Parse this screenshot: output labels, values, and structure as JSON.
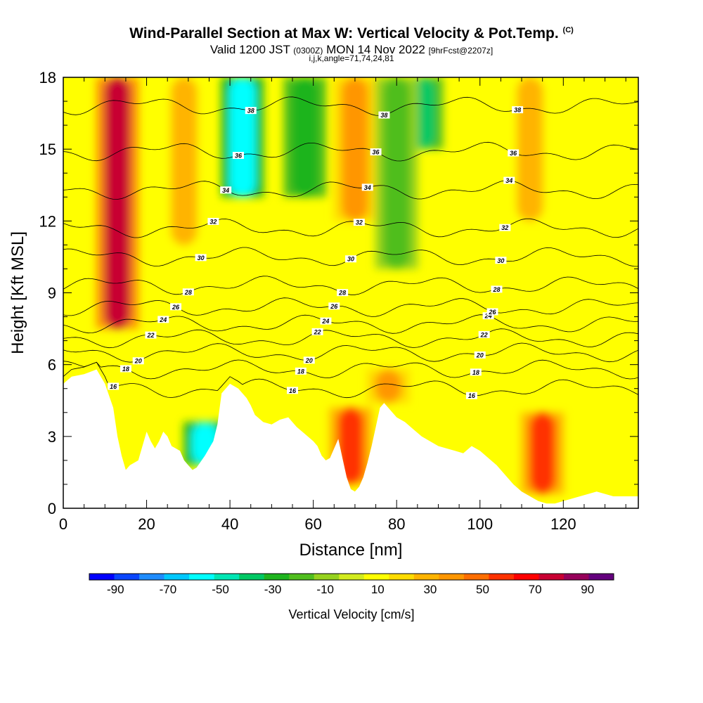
{
  "title": {
    "main": "Wind-Parallel Section at Max W: Vertical Velocity & Pot.Temp.",
    "copyright": "(C)",
    "valid_prefix": "Valid 1200 JST",
    "valid_utc": "(0300Z)",
    "valid_date": "MON 14 Nov 2022",
    "forecast": "[9hrFcst@2207z]",
    "grid_info": "i,j,k,angle=71,74,24,81"
  },
  "chart_data": {
    "type": "heatmap",
    "xlabel": "Distance [nm]",
    "ylabel": "Height [Kft MSL]",
    "xlim": [
      0,
      138
    ],
    "ylim": [
      0,
      18
    ],
    "x_ticks": [
      "0",
      "20",
      "40",
      "60",
      "80",
      "100",
      "120"
    ],
    "x_tick_values": [
      0,
      20,
      40,
      60,
      80,
      100,
      120
    ],
    "y_ticks": [
      "0",
      "3",
      "6",
      "9",
      "12",
      "15",
      "18"
    ],
    "y_tick_values": [
      0,
      3,
      6,
      9,
      12,
      15,
      18
    ],
    "terrain": {
      "x": [
        0,
        2,
        5,
        8,
        10,
        12,
        13,
        14,
        15,
        16,
        18,
        19,
        20,
        21,
        22,
        23,
        24,
        25,
        26,
        28,
        29,
        30,
        31,
        32,
        34,
        36,
        37,
        38,
        40,
        42,
        44,
        45,
        46,
        48,
        50,
        52,
        54,
        56,
        58,
        60,
        61,
        62,
        63,
        64,
        65,
        66,
        67,
        68,
        69,
        70,
        71,
        72,
        73,
        74,
        75,
        76,
        77,
        78,
        80,
        82,
        84,
        86,
        88,
        90,
        92,
        94,
        96,
        98,
        100,
        102,
        104,
        106,
        108,
        110,
        112,
        114,
        116,
        118,
        120,
        122,
        124,
        126,
        128,
        130,
        132,
        134,
        136,
        138
      ],
      "height_kft": [
        5.2,
        5.5,
        5.6,
        5.8,
        5.2,
        4.2,
        3.0,
        2.2,
        1.6,
        1.8,
        2.0,
        2.6,
        3.2,
        2.8,
        2.5,
        2.8,
        3.2,
        3.0,
        2.6,
        2.4,
        2.0,
        1.8,
        1.6,
        1.7,
        2.2,
        2.8,
        3.5,
        4.8,
        5.2,
        5.0,
        4.6,
        4.3,
        3.9,
        3.6,
        3.5,
        3.7,
        3.8,
        3.4,
        3.1,
        2.8,
        2.6,
        2.2,
        2.0,
        2.1,
        2.5,
        2.9,
        2.1,
        1.3,
        0.8,
        0.7,
        0.9,
        1.3,
        1.9,
        2.6,
        3.4,
        4.2,
        4.4,
        4.2,
        3.8,
        3.6,
        3.3,
        3.0,
        2.8,
        2.6,
        2.5,
        2.4,
        2.3,
        2.6,
        2.4,
        2.1,
        1.8,
        1.4,
        1.0,
        0.7,
        0.5,
        0.3,
        0.2,
        0.2,
        0.3,
        0.4,
        0.5,
        0.6,
        0.7,
        0.6,
        0.5,
        0.5,
        0.5,
        0.5
      ]
    },
    "vertical_velocity_cells_cm_s": [
      {
        "x": 13,
        "w": 85,
        "top": 18,
        "bottom": 7.5
      },
      {
        "x": 34,
        "w": -55,
        "top": 3.6,
        "bottom": 1.8
      },
      {
        "x": 43,
        "w": -55,
        "top": 18,
        "bottom": 13
      },
      {
        "x": 29,
        "w": 30,
        "top": 18,
        "bottom": 11
      },
      {
        "x": 69,
        "w": 65,
        "top": 4.2,
        "bottom": 1.0
      },
      {
        "x": 70,
        "w": 40,
        "top": 18,
        "bottom": 12
      },
      {
        "x": 115,
        "w": 65,
        "top": 4.0,
        "bottom": 0.6
      },
      {
        "x": 112,
        "w": 35,
        "top": 18,
        "bottom": 12
      },
      {
        "x": 86,
        "w": -35,
        "top": 18,
        "bottom": 15
      },
      {
        "x": 80,
        "w": -20,
        "top": 18,
        "bottom": 10
      },
      {
        "x": 58,
        "w": -25,
        "top": 18,
        "bottom": 13
      },
      {
        "x": 78,
        "w": 45,
        "top": 5.8,
        "bottom": 4.4
      }
    ],
    "theta_contour_labels": [
      "38",
      "36",
      "34",
      "32",
      "30",
      "28",
      "26",
      "24",
      "22",
      "20",
      "18",
      "16"
    ],
    "theta_contour_heights_kft": [
      {
        "label": "16",
        "height": 5.0
      },
      {
        "label": "18",
        "height": 5.8
      },
      {
        "label": "20",
        "height": 6.5
      },
      {
        "label": "22",
        "height": 7.1
      },
      {
        "label": "24",
        "height": 7.7
      },
      {
        "label": "26",
        "height": 8.4
      },
      {
        "label": "28",
        "height": 9.3
      },
      {
        "label": "30",
        "height": 10.5
      },
      {
        "label": "32",
        "height": 11.7
      },
      {
        "label": "34",
        "height": 13.3
      },
      {
        "label": "36",
        "height": 14.9
      },
      {
        "label": "38",
        "height": 16.8
      }
    ],
    "colorbar": {
      "title": "Vertical Velocity [cm/s]",
      "tick_labels": [
        "-90",
        "-70",
        "-50",
        "-30",
        "-10",
        "10",
        "30",
        "50",
        "70",
        "90"
      ],
      "levels": [
        -100,
        -90,
        -80,
        -70,
        -60,
        -50,
        -40,
        -30,
        -20,
        -10,
        0,
        10,
        20,
        30,
        40,
        50,
        60,
        70,
        80,
        90,
        100
      ],
      "colors": [
        "#0000ff",
        "#0a46ff",
        "#1e8cff",
        "#00c8ff",
        "#00ffff",
        "#00e6b4",
        "#00c864",
        "#1eb41e",
        "#50be1e",
        "#96d21e",
        "#d2eb1e",
        "#ffff00",
        "#ffdc00",
        "#ffb400",
        "#ff9600",
        "#ff6e00",
        "#ff3200",
        "#ff0000",
        "#c80032",
        "#96005a",
        "#64007d"
      ]
    }
  }
}
